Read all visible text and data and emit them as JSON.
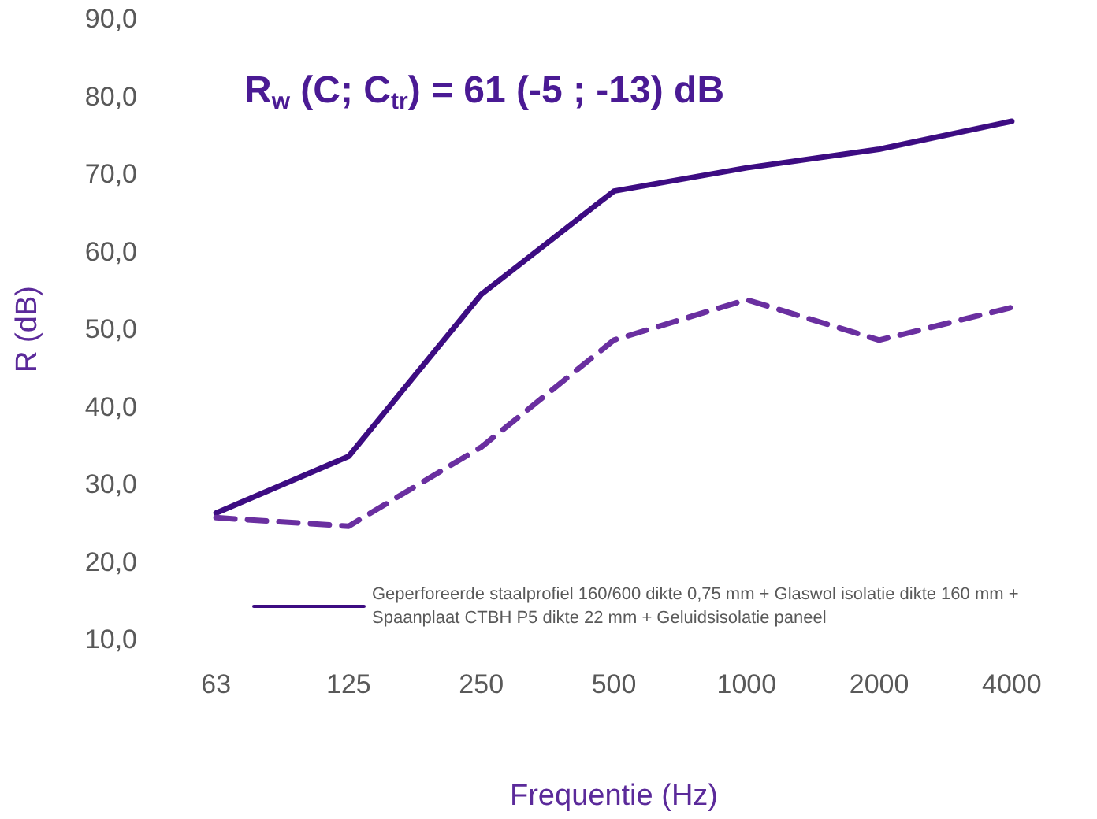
{
  "chart_data": {
    "type": "line",
    "title": "R$_{w}$ (C; C$_{tr}$) = 61 (-5 ; -13) dB",
    "xlabel": "Frequentie (Hz)",
    "ylabel": "R (dB)",
    "categories": [
      "63",
      "125",
      "250",
      "500",
      "1000",
      "2000",
      "4000"
    ],
    "series": [
      {
        "name": "Geperforeerde staalprofiel 160/600 dikte 0,75 mm + Glaswol isolatie dikte 160 mm + Spaanplaat CTBH P5 dikte 22 mm + Geluidsisolatie paneel",
        "color": "#3d0c82",
        "values": [
          26.3,
          33.6,
          54.5,
          67.8,
          70.8,
          73.2,
          76.8
        ],
        "line_style": "solid"
      },
      {
        "color": "#6a2fa0",
        "values": [
          25.7,
          24.6,
          34.8,
          48.6,
          53.8,
          48.6,
          52.8
        ],
        "line_style": "dashed"
      }
    ],
    "ylim": [
      10,
      90
    ],
    "yticks": [
      {
        "value": 10,
        "label": "10,0"
      },
      {
        "value": 20,
        "label": "20,0"
      },
      {
        "value": 30,
        "label": "30,0"
      },
      {
        "value": 40,
        "label": "40,0"
      },
      {
        "value": 50,
        "label": "50,0"
      },
      {
        "value": 60,
        "label": "60,0"
      },
      {
        "value": 70,
        "label": "70,0"
      },
      {
        "value": 80,
        "label": "80,0"
      },
      {
        "value": 90,
        "label": "90,0"
      }
    ],
    "grid": false,
    "legend": "bottom right",
    "marker": "none"
  }
}
